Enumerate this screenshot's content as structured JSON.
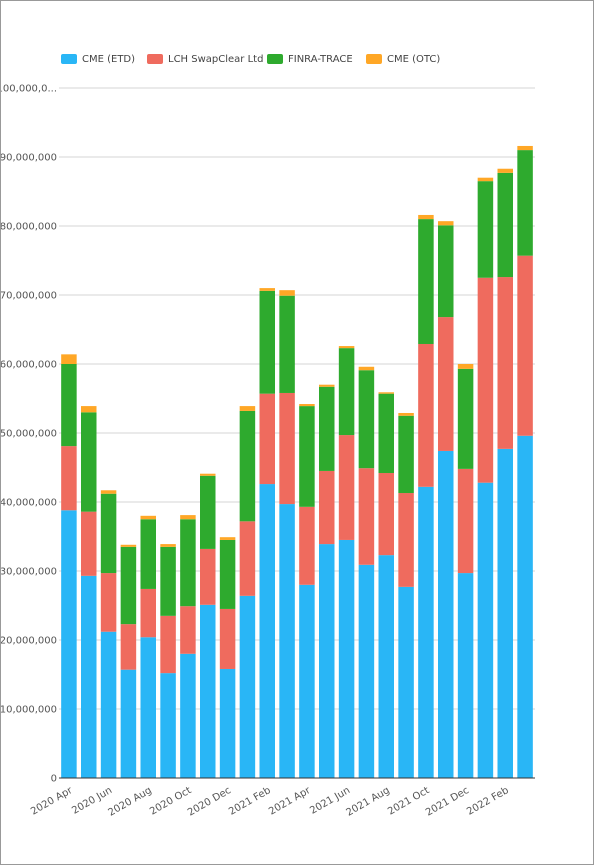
{
  "chart_data": {
    "type": "stacked_bar",
    "categories": [
      "2020 Apr",
      null,
      "2020 Jun",
      null,
      "2020 Aug",
      null,
      "2020 Oct",
      null,
      "2020 Dec",
      null,
      "2021 Feb",
      null,
      "2021 Apr",
      null,
      "2021 Jun",
      null,
      "2021 Aug",
      null,
      "2021 Oct",
      null,
      "2021 Dec",
      null,
      "2022 Feb",
      null
    ],
    "series": [
      {
        "name": "CME (ETD)",
        "color": "#29b6f6",
        "values": [
          38800000,
          29300000,
          21200000,
          15700000,
          20400000,
          15200000,
          18000000,
          25100000,
          15800000,
          26400000,
          42600000,
          39700000,
          28000000,
          33900000,
          34500000,
          30900000,
          32300000,
          27700000,
          42200000,
          47400000,
          29700000,
          42800000,
          47700000,
          49600000
        ]
      },
      {
        "name": "LCH SwapClear Ltd",
        "color": "#ef6b5e",
        "values": [
          9300000,
          9300000,
          8500000,
          6600000,
          7000000,
          8300000,
          6900000,
          8100000,
          8700000,
          10800000,
          13100000,
          16100000,
          11300000,
          10600000,
          15200000,
          14000000,
          11900000,
          13600000,
          20700000,
          19400000,
          15100000,
          29700000,
          24900000,
          26100000
        ]
      },
      {
        "name": "FINRA-TRACE",
        "color": "#2eaa2e",
        "values": [
          11900000,
          14400000,
          11500000,
          11200000,
          10100000,
          10000000,
          12600000,
          10600000,
          10000000,
          16000000,
          14900000,
          14100000,
          14600000,
          12200000,
          12600000,
          14200000,
          11500000,
          11200000,
          18100000,
          13300000,
          14500000,
          14000000,
          15100000,
          15300000
        ]
      },
      {
        "name": "CME (OTC)",
        "color": "#ffa726",
        "values": [
          1400000,
          900000,
          500000,
          300000,
          500000,
          400000,
          600000,
          300000,
          400000,
          700000,
          400000,
          800000,
          300000,
          300000,
          300000,
          500000,
          200000,
          400000,
          600000,
          600000,
          700000,
          500000,
          600000,
          600000
        ]
      }
    ],
    "ylim": [
      0,
      100000000
    ],
    "yticks": [
      0,
      {
        "value": 10000000,
        "label": "10,000,000"
      },
      {
        "value": 20000000,
        "label": "20,000,000"
      },
      {
        "value": 30000000,
        "label": "30,000,000"
      },
      {
        "value": 40000000,
        "label": "40,000,000"
      },
      {
        "value": 50000000,
        "label": "50,000,000"
      },
      {
        "value": 60000000,
        "label": "60,000,000"
      },
      {
        "value": 70000000,
        "label": "70,000,000"
      },
      {
        "value": 80000000,
        "label": "80,000,000"
      },
      {
        "value": 90000000,
        "label": "90,000,000"
      },
      {
        "value": 100000000,
        "label": "100,000,0..."
      }
    ],
    "grid": true,
    "legend": "top"
  }
}
